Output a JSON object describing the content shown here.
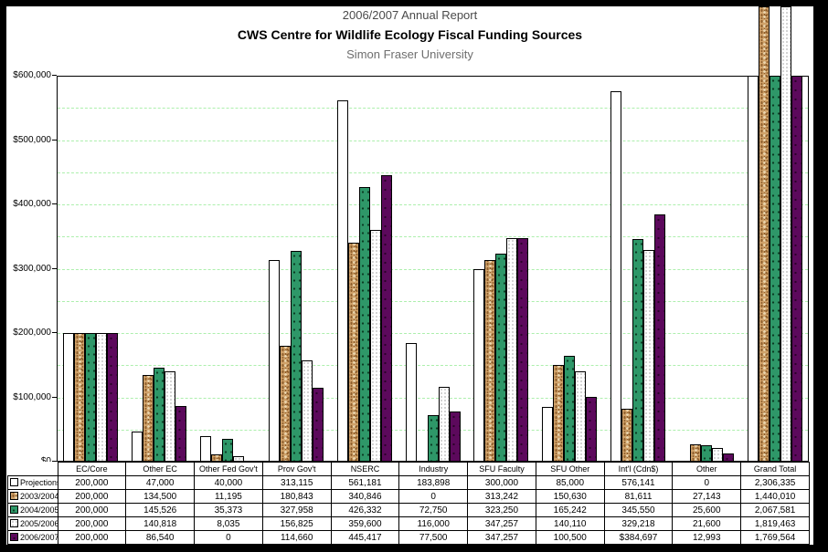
{
  "header": {
    "line1": "2006/2007 Annual Report",
    "line2": "CWS Centre for Wildlife Ecology Fiscal Funding Sources",
    "line3": "Simon Fraser University"
  },
  "chart_data": {
    "type": "bar",
    "title": "2006/2007 Annual Report",
    "subtitle": "CWS Centre for Wildlife Ecology Fiscal Funding Sources",
    "subtitle2": "Simon Fraser University",
    "categories": [
      "EC/Core",
      "Other EC",
      "Other Fed Gov't",
      "Prov Gov't",
      "NSERC",
      "Industry",
      "SFU Faculty",
      "SFU Other",
      "Int'l (Cdn$)",
      "Other",
      "Grand Total"
    ],
    "series": [
      {
        "name": "Projections",
        "fill": "white",
        "values": [
          200000,
          47000,
          40000,
          313115,
          561181,
          183898,
          300000,
          85000,
          576141,
          0,
          2306335
        ],
        "display": [
          "200,000",
          "47,000",
          "40,000",
          "313,115",
          "561,181",
          "183,898",
          "300,000",
          "85,000",
          "576,141",
          "0",
          "2,306,335"
        ]
      },
      {
        "name": "2003/2004",
        "fill": "tan",
        "values": [
          200000,
          134500,
          11195,
          180843,
          340846,
          0,
          313242,
          150630,
          81611,
          27143,
          1440010
        ],
        "display": [
          "200,000",
          "134,500",
          "11,195",
          "180,843",
          "340,846",
          "0",
          "313,242",
          "150,630",
          "81,611",
          "27,143",
          "1,440,010"
        ]
      },
      {
        "name": "2004/2005",
        "fill": "green",
        "values": [
          200000,
          145526,
          35373,
          327958,
          426332,
          72750,
          323250,
          165242,
          345550,
          25600,
          2067581
        ],
        "display": [
          "200,000",
          "145,526",
          "35,373",
          "327,958",
          "426,332",
          "72,750",
          "323,250",
          "165,242",
          "345,550",
          "25,600",
          "2,067,581"
        ]
      },
      {
        "name": "2005/2006",
        "fill": "light",
        "values": [
          200000,
          140818,
          8035,
          156825,
          359600,
          116000,
          347257,
          140110,
          329218,
          21600,
          1819463
        ],
        "display": [
          "200,000",
          "140,818",
          "8,035",
          "156,825",
          "359,600",
          "116,000",
          "347,257",
          "140,110",
          "329,218",
          "21,600",
          "1,819,463"
        ]
      },
      {
        "name": "2006/2007",
        "fill": "purple",
        "values": [
          200000,
          86540,
          0,
          114660,
          445417,
          77500,
          347257,
          100500,
          384697,
          12993,
          1769564
        ],
        "display": [
          "200,000",
          "86,540",
          "0",
          "114,660",
          "445,417",
          "77,500",
          "347,257",
          "100,500",
          "$384,697",
          "12,993",
          "1,769,564"
        ]
      }
    ],
    "xlabel": "",
    "ylabel": "",
    "ylim": [
      0,
      600000
    ],
    "y_tick_labels": [
      "$0",
      "$100,000",
      "$200,000",
      "$300,000",
      "$400,000",
      "$500,000",
      "$600,000"
    ],
    "gridline_step": 50000,
    "grid": true,
    "legend_position": "table-row-headers",
    "overflow_unclipped_series": [
      "2003/2004",
      "2005/2006"
    ],
    "colors": {
      "gridline": "#ADEFAD",
      "bar_border": "#000000",
      "green": "#2E9768",
      "purple": "#5C095C",
      "tan": "#CFA169",
      "tan_dark": "#8F5F2C",
      "tan_light": "#EBD8B2",
      "light_dot": "#C9C9C9"
    }
  }
}
